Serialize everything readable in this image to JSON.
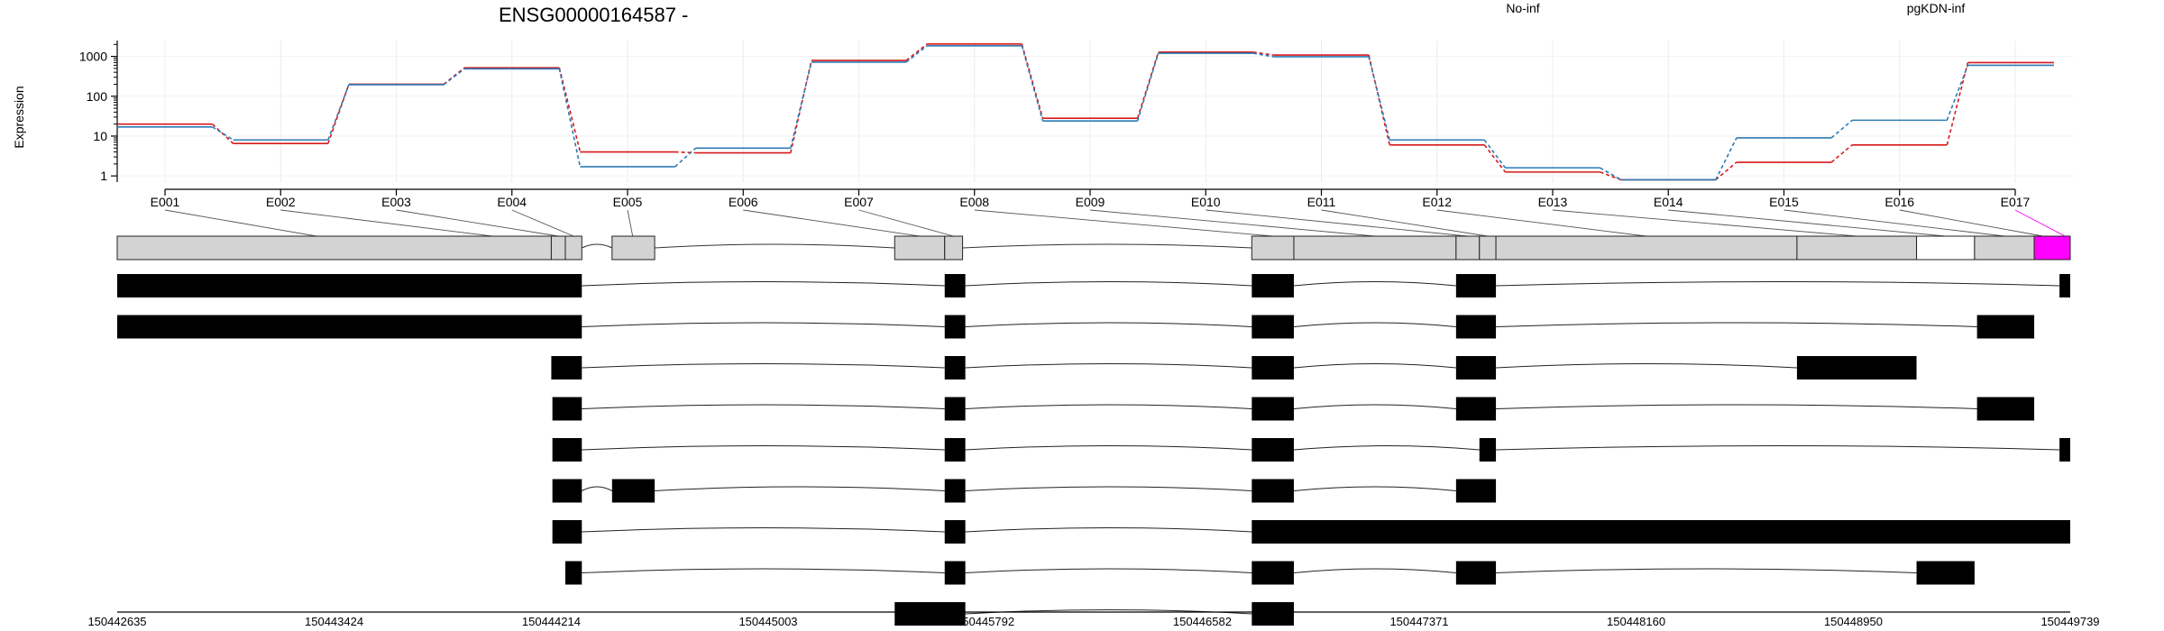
{
  "title": "ENSG00000164587 -",
  "chart_data": {
    "type": "line",
    "title": "ENSG00000164587 -",
    "ylabel": "Expression",
    "yscale": "log",
    "ylim": [
      0.7,
      2500
    ],
    "yticks": [
      "1",
      "10",
      "100",
      "1000"
    ],
    "grid": true,
    "legend_placement": "top-right",
    "categories": [
      "E001",
      "E002",
      "E003",
      "E004",
      "E005",
      "E006",
      "E007",
      "E008",
      "E009",
      "E010",
      "E011",
      "E012",
      "E013",
      "E014",
      "E015",
      "E016",
      "E017"
    ],
    "series": [
      {
        "name": "No-inf",
        "color": "#d7191c",
        "values": [
          20,
          6.5,
          200,
          520,
          4,
          3.8,
          790,
          2050,
          28,
          1280,
          1080,
          6,
          1.25,
          0.8,
          2.2,
          6,
          700
        ]
      },
      {
        "name": "pgKDN-inf",
        "color": "#2c7bb6",
        "values": [
          17,
          8,
          195,
          490,
          1.7,
          5,
          720,
          1850,
          24,
          1200,
          980,
          8,
          1.6,
          0.8,
          9,
          25,
          600
        ]
      }
    ]
  },
  "gene_model": {
    "range": [
      150442635,
      150449739
    ],
    "coordinate_ticks": [
      "150442635",
      "150443424",
      "150444214",
      "150445003",
      "150445792",
      "150446582",
      "150447371",
      "150448160",
      "150448950",
      "150449739"
    ],
    "highlight_color": "#ff00ff",
    "exon_bins": [
      {
        "start": 150442635,
        "end": 150444214
      },
      {
        "start": 150444214,
        "end": 150444265
      },
      {
        "start": 150444265,
        "end": 150444325
      },
      {
        "start": 150444435,
        "end": 150444590
      },
      {
        "start": 150445463,
        "end": 150445645
      },
      {
        "start": 150445645,
        "end": 150445710
      },
      {
        "start": 150446762,
        "end": 150446915
      },
      {
        "start": 150446915,
        "end": 150447505
      },
      {
        "start": 150447505,
        "end": 150447590
      },
      {
        "start": 150447590,
        "end": 150447650
      },
      {
        "start": 150447650,
        "end": 150448745
      },
      {
        "start": 150448745,
        "end": 150449180
      },
      {
        "start": 150449180,
        "end": 150449391
      },
      {
        "start": 150449391,
        "end": 150449608
      },
      {
        "start": 150449608,
        "end": 150449739
      }
    ],
    "exon_bin_highlight": [
      false,
      false,
      false,
      false,
      false,
      false,
      false,
      false,
      false,
      false,
      false,
      false,
      false,
      false,
      true
    ],
    "exon_bin_white": [
      false,
      false,
      false,
      false,
      false,
      false,
      false,
      false,
      false,
      false,
      false,
      false,
      true,
      false,
      false
    ],
    "label_links": [
      {
        "label": "E001",
        "pos": 150443360
      },
      {
        "label": "E002",
        "pos": 150444000
      },
      {
        "label": "E003",
        "pos": 150444240
      },
      {
        "label": "E004",
        "pos": 150444295
      },
      {
        "label": "E005",
        "pos": 150444510
      },
      {
        "label": "E006",
        "pos": 150445554
      },
      {
        "label": "E007",
        "pos": 150445677
      },
      {
        "label": "E008",
        "pos": 150446838
      },
      {
        "label": "E009",
        "pos": 150447210
      },
      {
        "label": "E010",
        "pos": 150447547
      },
      {
        "label": "E011",
        "pos": 150447620
      },
      {
        "label": "E012",
        "pos": 150448197
      },
      {
        "label": "E013",
        "pos": 150448962
      },
      {
        "label": "E014",
        "pos": 150449285
      },
      {
        "label": "E015",
        "pos": 150449500
      },
      {
        "label": "E016",
        "pos": 150449640
      },
      {
        "label": "E017",
        "pos": 150449720
      }
    ],
    "transcripts": [
      {
        "exons": [
          [
            150442635,
            150444325
          ],
          [
            150445645,
            150445720
          ],
          [
            150446762,
            150446915
          ],
          [
            150447505,
            150447650
          ],
          [
            150449700,
            150449739
          ]
        ]
      },
      {
        "exons": [
          [
            150442635,
            150444325
          ],
          [
            150445645,
            150445720
          ],
          [
            150446762,
            150446915
          ],
          [
            150447505,
            150447650
          ],
          [
            150449400,
            150449608
          ]
        ]
      },
      {
        "exons": [
          [
            150444214,
            150444325
          ],
          [
            150445645,
            150445720
          ],
          [
            150446762,
            150446915
          ],
          [
            150447505,
            150447650
          ],
          [
            150448745,
            150449180
          ]
        ]
      },
      {
        "exons": [
          [
            150444218,
            150444325
          ],
          [
            150445645,
            150445720
          ],
          [
            150446762,
            150446915
          ],
          [
            150447505,
            150447650
          ],
          [
            150449400,
            150449608
          ]
        ]
      },
      {
        "exons": [
          [
            150444218,
            150444325
          ],
          [
            150445645,
            150445720
          ],
          [
            150446762,
            150446915
          ],
          [
            150447590,
            150447650
          ],
          [
            150449700,
            150449739
          ]
        ]
      },
      {
        "exons": [
          [
            150444218,
            150444325
          ],
          [
            150444435,
            150444590
          ],
          [
            150445645,
            150445720
          ],
          [
            150446762,
            150446915
          ],
          [
            150447505,
            150447650
          ]
        ]
      },
      {
        "exons": [
          [
            150444218,
            150444325
          ],
          [
            150445645,
            150445720
          ],
          [
            150446762,
            150449739
          ]
        ]
      },
      {
        "exons": [
          [
            150444265,
            150444325
          ],
          [
            150445645,
            150445720
          ],
          [
            150446762,
            150446915
          ],
          [
            150447505,
            150447650
          ],
          [
            150449180,
            150449391
          ]
        ]
      },
      {
        "exons": [
          [
            150445463,
            150445720
          ],
          [
            150446762,
            150446915
          ]
        ]
      }
    ]
  }
}
